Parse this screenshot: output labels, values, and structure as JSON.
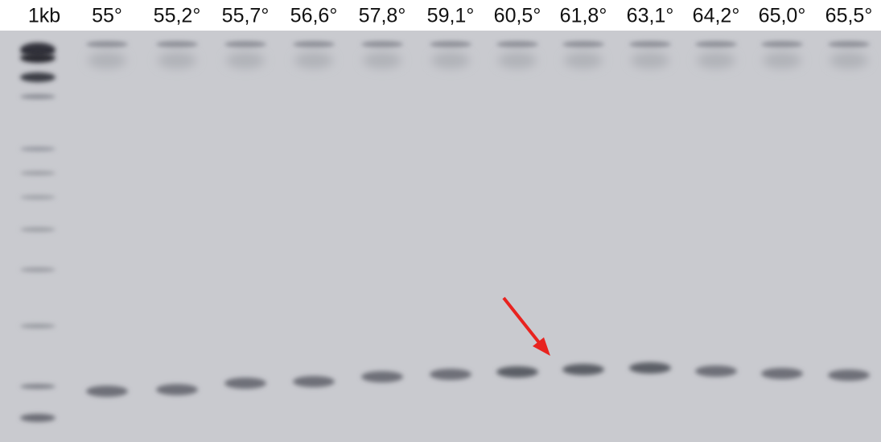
{
  "lane_labels": [
    "1kb",
    "55°",
    "55,2°",
    "55,7°",
    "56,6°",
    "57,8°",
    "59,1°",
    "60,5°",
    "61,8°",
    "63,1°",
    "64,2°",
    "65,0°",
    "65,5°"
  ]
}
